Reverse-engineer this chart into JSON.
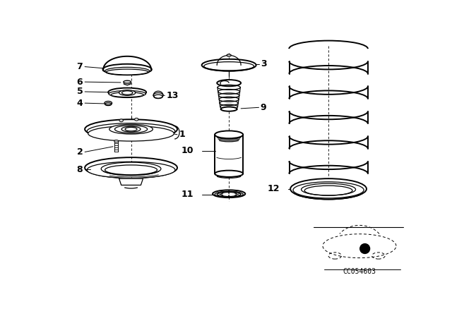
{
  "bg_color": "#ffffff",
  "line_color": "#000000",
  "diagram_code": "CC054603"
}
